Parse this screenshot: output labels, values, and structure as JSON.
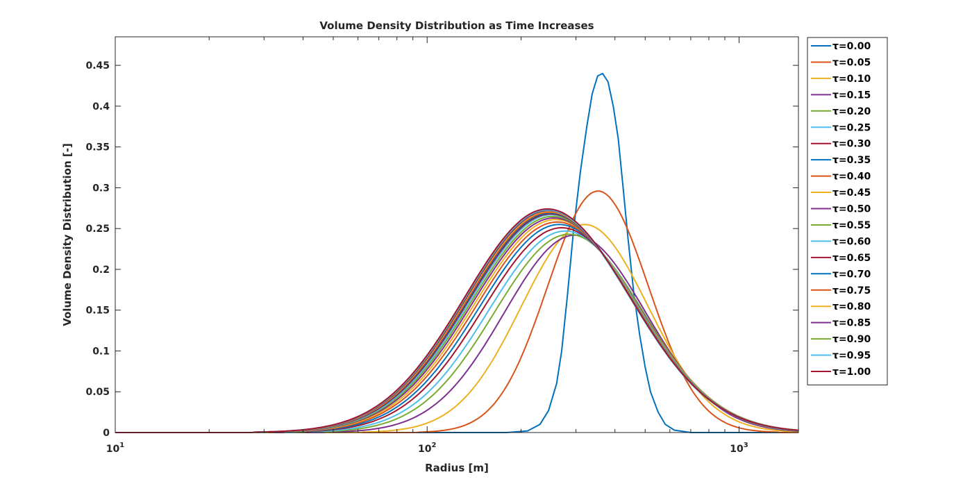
{
  "chart_data": {
    "type": "line",
    "title": "Volume Density Distribution as Time Increases",
    "xlabel": "Radius [m]",
    "ylabel": "Volume Density Distribution [-]",
    "xscale": "log",
    "xlim": [
      10,
      1550
    ],
    "ylim": [
      0,
      0.485
    ],
    "x_ticks": [
      10,
      100,
      1000
    ],
    "x_tick_labels": [
      {
        "base": "10",
        "exp": "1"
      },
      {
        "base": "10",
        "exp": "2"
      },
      {
        "base": "10",
        "exp": "3"
      }
    ],
    "y_ticks": [
      0,
      0.05,
      0.1,
      0.15,
      0.2,
      0.25,
      0.3,
      0.35,
      0.4,
      0.45
    ],
    "y_tick_labels": [
      "0",
      "0.05",
      "0.1",
      "0.15",
      "0.2",
      "0.25",
      "0.3",
      "0.35",
      "0.4",
      "0.45"
    ],
    "grid": false,
    "legend_position": "outside-right",
    "series": [
      {
        "name": "τ=0.00",
        "color": "#0072BD",
        "x": [
          10,
          180,
          210,
          230,
          245,
          260,
          270,
          282,
          295,
          310,
          325,
          338,
          352,
          365,
          380,
          395,
          410,
          425,
          440,
          460,
          480,
          500,
          520,
          550,
          580,
          620,
          700,
          1550
        ],
        "values": [
          0,
          0,
          0.002,
          0.01,
          0.027,
          0.06,
          0.1,
          0.17,
          0.25,
          0.32,
          0.375,
          0.415,
          0.437,
          0.44,
          0.43,
          0.4,
          0.36,
          0.3,
          0.24,
          0.17,
          0.12,
          0.08,
          0.05,
          0.025,
          0.01,
          0.003,
          0,
          0
        ]
      },
      {
        "name": "τ=0.05",
        "color": "#D95319",
        "peak": 353,
        "amp": 0.296,
        "sigma": 0.27
      },
      {
        "name": "τ=0.10",
        "color": "#EDB120",
        "peak": 320,
        "amp": 0.255,
        "sigma": 0.34
      },
      {
        "name": "τ=0.15",
        "color": "#7E2F8E",
        "peak": 298,
        "amp": 0.242,
        "sigma": 0.38
      },
      {
        "name": "τ=0.20",
        "color": "#77AC30",
        "peak": 285,
        "amp": 0.243,
        "sigma": 0.4
      },
      {
        "name": "τ=0.25",
        "color": "#4DBEEE",
        "peak": 277,
        "amp": 0.247,
        "sigma": 0.41
      },
      {
        "name": "τ=0.30",
        "color": "#A2142F",
        "peak": 270,
        "amp": 0.251,
        "sigma": 0.42
      },
      {
        "name": "τ=0.35",
        "color": "#0072BD",
        "peak": 265,
        "amp": 0.255,
        "sigma": 0.425
      },
      {
        "name": "τ=0.40",
        "color": "#D95319",
        "peak": 261,
        "amp": 0.258,
        "sigma": 0.43
      },
      {
        "name": "τ=0.45",
        "color": "#EDB120",
        "peak": 258,
        "amp": 0.261,
        "sigma": 0.433
      },
      {
        "name": "τ=0.50",
        "color": "#7E2F8E",
        "peak": 255,
        "amp": 0.263,
        "sigma": 0.435
      },
      {
        "name": "τ=0.55",
        "color": "#77AC30",
        "peak": 253,
        "amp": 0.265,
        "sigma": 0.437
      },
      {
        "name": "τ=0.60",
        "color": "#4DBEEE",
        "peak": 251,
        "amp": 0.267,
        "sigma": 0.438
      },
      {
        "name": "τ=0.65",
        "color": "#A2142F",
        "peak": 249,
        "amp": 0.268,
        "sigma": 0.439
      },
      {
        "name": "τ=0.70",
        "color": "#0072BD",
        "peak": 248,
        "amp": 0.269,
        "sigma": 0.44
      },
      {
        "name": "τ=0.75",
        "color": "#D95319",
        "peak": 247,
        "amp": 0.27,
        "sigma": 0.44
      },
      {
        "name": "τ=0.80",
        "color": "#EDB120",
        "peak": 246,
        "amp": 0.271,
        "sigma": 0.441
      },
      {
        "name": "τ=0.85",
        "color": "#7E2F8E",
        "peak": 245,
        "amp": 0.272,
        "sigma": 0.441
      },
      {
        "name": "τ=0.90",
        "color": "#77AC30",
        "peak": 244,
        "amp": 0.273,
        "sigma": 0.442
      },
      {
        "name": "τ=0.95",
        "color": "#4DBEEE",
        "peak": 243,
        "amp": 0.273,
        "sigma": 0.442
      },
      {
        "name": "τ=1.00",
        "color": "#A2142F",
        "peak": 243,
        "amp": 0.274,
        "sigma": 0.443
      }
    ]
  }
}
